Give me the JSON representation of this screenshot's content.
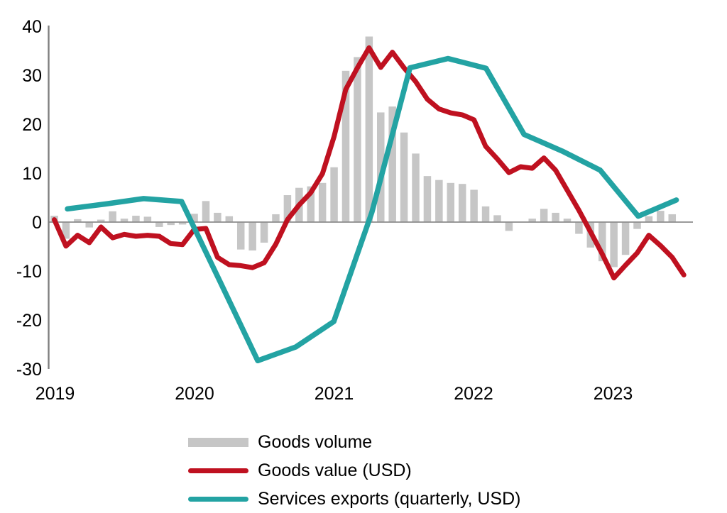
{
  "colors": {
    "bars": "#c6c6c6",
    "goods_value": "#bf1120",
    "services_exports": "#23a3a3",
    "axis": "#7f7f7f",
    "zero_line": "#8c8c8c",
    "text": "#000000",
    "background": "#ffffff"
  },
  "legend": {
    "items": [
      {
        "label": "Goods volume",
        "type": "bar"
      },
      {
        "label": "Goods value (USD)",
        "type": "line"
      },
      {
        "label": "Services exports (quarterly, USD)",
        "type": "line"
      }
    ],
    "position": "bottom"
  },
  "chart_data": {
    "type": "combo",
    "title": "",
    "xlabel": "",
    "ylabel": "",
    "grid": false,
    "yaxis": {
      "ticks": [
        40,
        30,
        20,
        10,
        0,
        -10,
        -20,
        -30
      ],
      "ylim": [
        -30,
        40
      ]
    },
    "xaxis": {
      "labels": [
        "2019",
        "2020",
        "2021",
        "2022",
        "2023"
      ]
    },
    "series": [
      {
        "name": "Goods volume",
        "type": "bar",
        "x": [
          "2019-01",
          "2019-02",
          "2019-03",
          "2019-04",
          "2019-05",
          "2019-06",
          "2019-07",
          "2019-08",
          "2019-09",
          "2019-10",
          "2019-11",
          "2019-12",
          "2020-01",
          "2020-02",
          "2020-03",
          "2020-04",
          "2020-05",
          "2020-06",
          "2020-07",
          "2020-08",
          "2020-09",
          "2020-10",
          "2020-11",
          "2020-12",
          "2021-01",
          "2021-02",
          "2021-03",
          "2021-04",
          "2021-05",
          "2021-06",
          "2021-07",
          "2021-08",
          "2021-09",
          "2021-10",
          "2021-11",
          "2021-12",
          "2022-01",
          "2022-02",
          "2022-03",
          "2022-04",
          "2022-05",
          "2022-06",
          "2022-07",
          "2022-08",
          "2022-09",
          "2022-10",
          "2022-11",
          "2022-12",
          "2023-01",
          "2023-02",
          "2023-03",
          "2023-04",
          "2023-05",
          "2023-06"
        ],
        "values": [
          1.3,
          -3.4,
          0.6,
          -1.1,
          0.5,
          2.2,
          0.7,
          1.3,
          1.1,
          -1.0,
          -0.6,
          -0.5,
          1.7,
          4.3,
          1.9,
          1.2,
          -5.6,
          -5.8,
          -4.2,
          1.6,
          5.5,
          7.0,
          7.3,
          8.0,
          11.2,
          30.9,
          33.7,
          37.9,
          22.4,
          23.6,
          18.3,
          14.0,
          9.4,
          8.6,
          8.0,
          7.8,
          6.6,
          3.2,
          1.4,
          -1.8,
          0.0,
          0.7,
          2.7,
          1.9,
          0.7,
          -2.4,
          -5.2,
          -8.0,
          -9.2,
          -6.7,
          -1.4,
          1.2,
          2.3,
          1.6
        ]
      },
      {
        "name": "Goods value (USD)",
        "type": "line",
        "x": [
          "2019-01",
          "2019-02",
          "2019-03",
          "2019-04",
          "2019-05",
          "2019-06",
          "2019-07",
          "2019-08",
          "2019-09",
          "2019-10",
          "2019-11",
          "2019-12",
          "2020-01",
          "2020-02",
          "2020-03",
          "2020-04",
          "2020-05",
          "2020-06",
          "2020-07",
          "2020-08",
          "2020-09",
          "2020-10",
          "2020-11",
          "2020-12",
          "2021-01",
          "2021-02",
          "2021-03",
          "2021-04",
          "2021-05",
          "2021-06",
          "2021-07",
          "2021-08",
          "2021-09",
          "2021-10",
          "2021-11",
          "2021-12",
          "2022-01",
          "2022-02",
          "2022-03",
          "2022-04",
          "2022-05",
          "2022-06",
          "2022-07",
          "2022-08",
          "2022-09",
          "2022-10",
          "2022-11",
          "2022-12",
          "2023-01",
          "2023-02",
          "2023-03",
          "2023-04",
          "2023-05",
          "2023-06",
          "2023-07"
        ],
        "values": [
          0.5,
          -4.9,
          -2.7,
          -4.2,
          -1.0,
          -3.2,
          -2.5,
          -2.9,
          -2.7,
          -2.9,
          -4.4,
          -4.6,
          -1.5,
          -1.3,
          -7.2,
          -8.7,
          -8.9,
          -9.3,
          -8.3,
          -4.5,
          0.5,
          3.5,
          6.0,
          9.9,
          17.5,
          27.1,
          31.5,
          35.6,
          31.6,
          34.7,
          31.5,
          28.7,
          25.1,
          23.1,
          22.3,
          21.9,
          20.9,
          15.5,
          12.9,
          10.1,
          11.3,
          11.0,
          13.1,
          10.6,
          6.5,
          2.4,
          -2.0,
          -6.5,
          -11.4,
          -8.8,
          -6.3,
          -2.7,
          -4.8,
          -7.2,
          -10.8
        ]
      },
      {
        "name": "Services exports (quarterly, USD)",
        "type": "line",
        "x": [
          "2019-Q1",
          "2019-Q2",
          "2019-Q3",
          "2019-Q4",
          "2020-Q1",
          "2020-Q2",
          "2020-Q3",
          "2020-Q4",
          "2021-Q1",
          "2021-Q2",
          "2021-Q3",
          "2021-Q4",
          "2022-Q1",
          "2022-Q2",
          "2022-Q3",
          "2022-Q4",
          "2023-Q1"
        ],
        "values": [
          2.7,
          3.7,
          4.8,
          4.2,
          -12.0,
          -28.3,
          -25.5,
          -20.3,
          2.0,
          31.5,
          33.4,
          31.4,
          17.9,
          14.5,
          10.6,
          1.2,
          4.5
        ]
      }
    ]
  }
}
